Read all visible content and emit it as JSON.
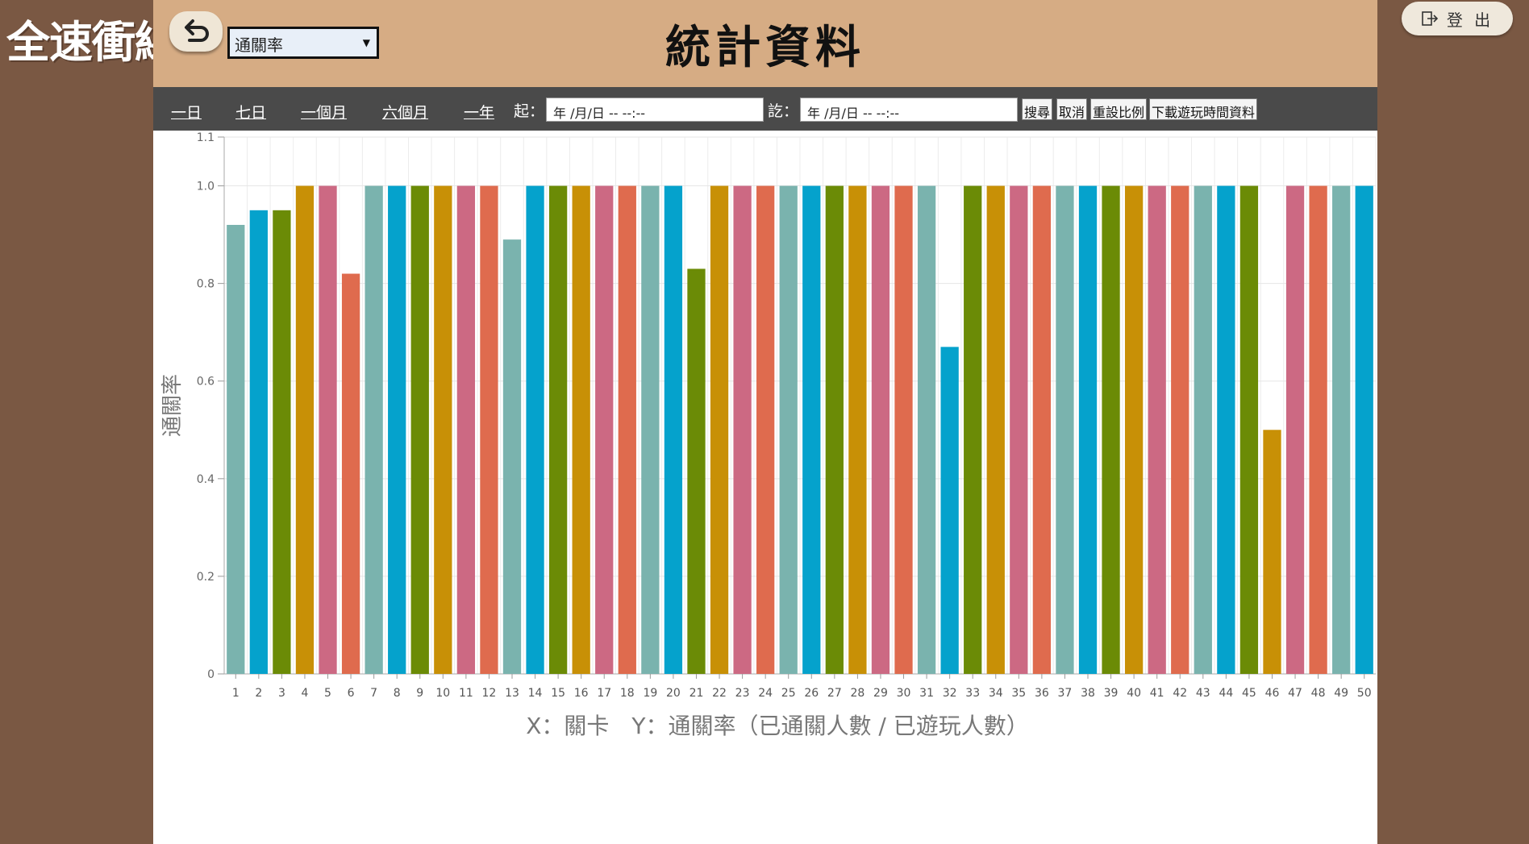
{
  "app": {
    "logo_text": "全速衝線",
    "logout_label": "登 出"
  },
  "header": {
    "title": "統計資料",
    "metric_selected": "通關率"
  },
  "toolbar": {
    "ranges": [
      "一日",
      "七日",
      "一個月",
      "六個月",
      "一年"
    ],
    "from_label": "起：",
    "to_label": "訖：",
    "from_value": "年 /月/日 -- --:--",
    "to_value": "年 /月/日 -- --:--",
    "search_label": "搜尋",
    "cancel_label": "取消",
    "reset_label": "重設比例",
    "download_label": "下載遊玩時間資料"
  },
  "colors": {
    "background": "#7a5843",
    "header": "#d6ac84",
    "toolbar": "#4a4a4a",
    "palette": [
      "#7ab3ae",
      "#05a2cc",
      "#6b8b06",
      "#c89006",
      "#cc6983",
      "#df6b4e"
    ]
  },
  "chart_data": {
    "type": "bar",
    "xlabel": "X：關卡　Y：通關率（已通關人數 / 已遊玩人數）",
    "ylabel": "通關率",
    "ylim": [
      0,
      1.1
    ],
    "yticks": [
      "0",
      "0.2",
      "0.4",
      "0.6",
      "0.8",
      "1.0",
      "1.1"
    ],
    "grid": true,
    "categories": [
      "1",
      "2",
      "3",
      "4",
      "5",
      "6",
      "7",
      "8",
      "9",
      "10",
      "11",
      "12",
      "13",
      "14",
      "15",
      "16",
      "17",
      "18",
      "19",
      "20",
      "21",
      "22",
      "23",
      "24",
      "25",
      "26",
      "27",
      "28",
      "29",
      "30",
      "31",
      "32",
      "33",
      "34",
      "35",
      "36",
      "37",
      "38",
      "39",
      "40",
      "41",
      "42",
      "43",
      "44",
      "45",
      "46",
      "47",
      "48",
      "49",
      "50"
    ],
    "values": [
      0.92,
      0.95,
      0.95,
      1.0,
      1.0,
      0.82,
      1.0,
      1.0,
      1.0,
      1.0,
      1.0,
      1.0,
      0.89,
      1.0,
      1.0,
      1.0,
      1.0,
      1.0,
      1.0,
      1.0,
      0.83,
      1.0,
      1.0,
      1.0,
      1.0,
      1.0,
      1.0,
      1.0,
      1.0,
      1.0,
      1.0,
      0.67,
      1.0,
      1.0,
      1.0,
      1.0,
      1.0,
      1.0,
      1.0,
      1.0,
      1.0,
      1.0,
      1.0,
      1.0,
      1.0,
      0.5,
      1.0,
      1.0,
      1.0,
      1.0
    ]
  }
}
